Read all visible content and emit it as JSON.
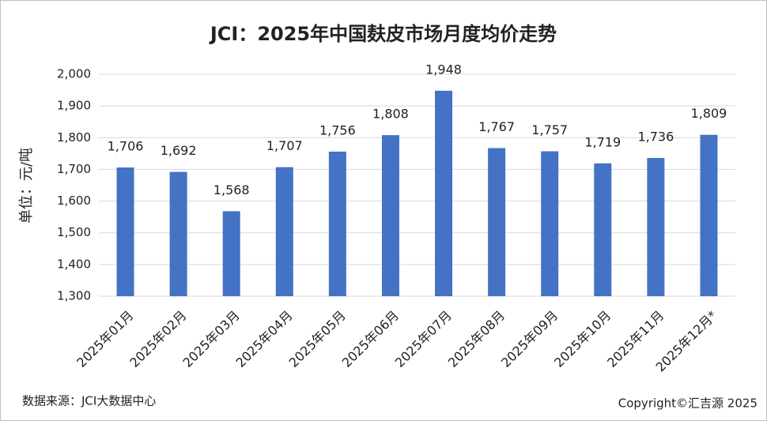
{
  "chart_data": {
    "type": "bar",
    "title": "JCI：2025年中国麸皮市场月度均价走势",
    "y_label": "单位：元/吨",
    "source": "数据来源：JCI大数据中心",
    "copyright": "Copyright©汇吉源 2025",
    "categories": [
      "2025年01月",
      "2025年02月",
      "2025年03月",
      "2025年04月",
      "2025年05月",
      "2025年06月",
      "2025年07月",
      "2025年08月",
      "2025年09月",
      "2025年10月",
      "2025年11月",
      "2025年12月*"
    ],
    "values": [
      1706,
      1692,
      1568,
      1707,
      1756,
      1808,
      1948,
      1767,
      1757,
      1719,
      1736,
      1809
    ],
    "value_labels": [
      "1,706",
      "1,692",
      "1,568",
      "1,707",
      "1,756",
      "1,808",
      "1,948",
      "1,767",
      "1,757",
      "1,719",
      "1,736",
      "1,809"
    ],
    "color": "#4472c4",
    "ylim": [
      1300,
      2000
    ],
    "yticks": [
      {
        "value": 1300,
        "label": "1,300"
      },
      {
        "value": 1400,
        "label": "1,400"
      },
      {
        "value": 1500,
        "label": "1,500"
      },
      {
        "value": 1600,
        "label": "1,600"
      },
      {
        "value": 1700,
        "label": "1,700"
      },
      {
        "value": 1800,
        "label": "1,800"
      },
      {
        "value": 1900,
        "label": "1,900"
      },
      {
        "value": 2000,
        "label": "2,000"
      }
    ],
    "grid": true
  }
}
